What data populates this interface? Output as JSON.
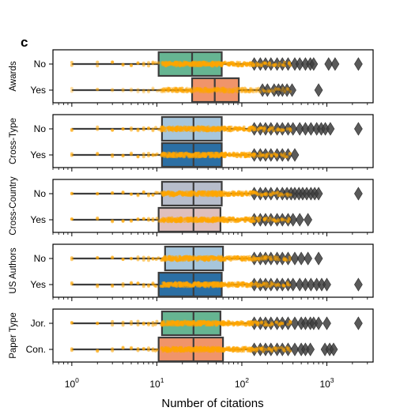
{
  "chart_data": {
    "type": "boxplot-strip",
    "panel_label": "c",
    "xlabel": "Number of citations",
    "xscale": "log",
    "xlim": [
      0.6,
      3500
    ],
    "x_ticks": [
      {
        "value": 1,
        "base": "10",
        "exp": "0"
      },
      {
        "value": 10,
        "base": "10",
        "exp": "1"
      },
      {
        "value": 100,
        "base": "10",
        "exp": "2"
      },
      {
        "value": 1000,
        "base": "10",
        "exp": "3"
      }
    ],
    "colors": {
      "points": "#FFA500",
      "box_edge": "#3d3d3d",
      "whisker": "#3d3d3d",
      "flier": "#3d3d3d"
    },
    "facets": [
      {
        "name": "Awards",
        "categories": [
          {
            "label": "No",
            "q1": 10.5,
            "median": 26,
            "q3": 58,
            "whislo": 1,
            "whishi": 131,
            "color": "#66b592",
            "fliers": [
              140,
              165,
              190,
              220,
              260,
              300,
              350,
              420,
              480,
              560,
              640,
              700,
              1050,
              1250,
              2350
            ]
          },
          {
            "label": "Yes",
            "q1": 26,
            "median": 48,
            "q3": 92,
            "whislo": 1,
            "whishi": 160,
            "color": "#f0946a",
            "fliers": [
              175,
              200,
              240,
              270,
              300,
              340,
              390,
              800
            ]
          }
        ]
      },
      {
        "name": "Cross-Type",
        "categories": [
          {
            "label": "No",
            "q1": 11.5,
            "median": 27,
            "q3": 58,
            "whislo": 1,
            "whishi": 131,
            "color": "#a7c6dc",
            "fliers": [
              140,
              165,
              190,
              220,
              260,
              300,
              350,
              400,
              480,
              560,
              650,
              760,
              860,
              960,
              1100,
              2350
            ]
          },
          {
            "label": "Yes",
            "q1": 11.5,
            "median": 27,
            "q3": 58,
            "whislo": 1,
            "whishi": 131,
            "color": "#2b6fa4",
            "fliers": [
              140,
              165,
              190,
              220,
              260,
              300,
              350,
              420
            ]
          }
        ]
      },
      {
        "name": "Cross-Country",
        "categories": [
          {
            "label": "No",
            "q1": 11.5,
            "median": 27,
            "q3": 58,
            "whislo": 1,
            "whishi": 131,
            "color": "#b7bdcb",
            "fliers": [
              140,
              165,
              190,
              220,
              260,
              300,
              340,
              380,
              420,
              470,
              520,
              580,
              650,
              720,
              800,
              2350
            ]
          },
          {
            "label": "Yes",
            "q1": 10.5,
            "median": 27,
            "q3": 56,
            "whislo": 1,
            "whishi": 126,
            "color": "#dfbfbd",
            "fliers": [
              140,
              165,
              190,
              220,
              260,
              300,
              350,
              400,
              480,
              600
            ]
          }
        ]
      },
      {
        "name": "US Authors",
        "categories": [
          {
            "label": "No",
            "q1": 12.5,
            "median": 27,
            "q3": 60,
            "whislo": 1,
            "whishi": 131,
            "color": "#a7c6dc",
            "fliers": [
              140,
              165,
              190,
              220,
              260,
              300,
              350,
              420,
              500,
              600,
              800
            ]
          },
          {
            "label": "Yes",
            "q1": 10.5,
            "median": 27,
            "q3": 58,
            "whislo": 1,
            "whishi": 131,
            "color": "#2b6fa4",
            "fliers": [
              140,
              165,
              190,
              220,
              260,
              300,
              350,
              400,
              480,
              560,
              650,
              760,
              870,
              1000,
              2350
            ]
          }
        ]
      },
      {
        "name": "Paper Type",
        "categories": [
          {
            "label": "Jor.",
            "q1": 11.5,
            "median": 27,
            "q3": 56,
            "whislo": 1,
            "whishi": 131,
            "color": "#66b592",
            "fliers": [
              140,
              165,
              190,
              220,
              260,
              300,
              350,
              420,
              500,
              560,
              640,
              700,
              800,
              1000,
              2350
            ]
          },
          {
            "label": "Con.",
            "q1": 10.5,
            "median": 27,
            "q3": 60,
            "whislo": 1,
            "whishi": 131,
            "color": "#f0946a",
            "fliers": [
              140,
              165,
              190,
              220,
              260,
              300,
              350,
              420,
              500,
              560,
              640,
              950,
              1080,
              1200
            ]
          }
        ]
      }
    ],
    "strip_x_values": [
      1,
      2,
      3,
      4,
      5,
      6,
      7,
      8,
      9,
      10,
      12,
      14,
      16,
      18,
      20,
      23,
      26,
      30,
      34,
      38,
      43,
      48,
      54,
      60,
      67,
      75,
      84,
      94,
      105,
      118,
      130,
      145,
      160,
      180,
      200,
      230,
      260,
      300,
      350
    ]
  }
}
